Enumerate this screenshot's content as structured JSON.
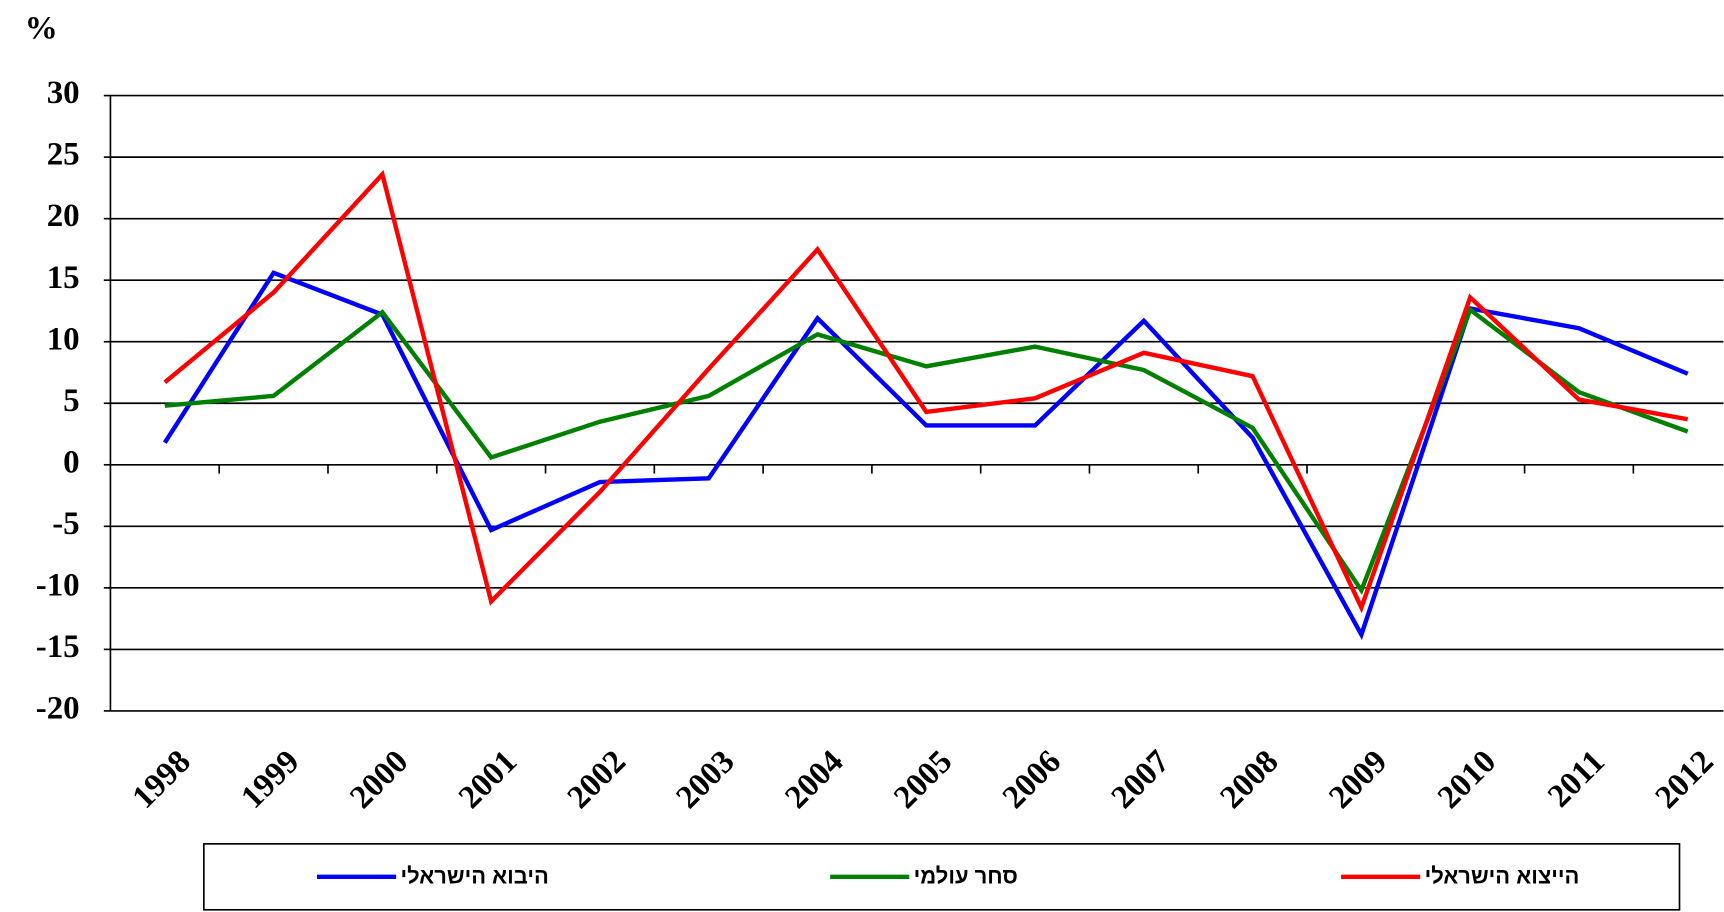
{
  "chart_data": {
    "type": "line",
    "y_label": "%",
    "categories": [
      "1998",
      "1999",
      "2000",
      "2001",
      "2002",
      "2003",
      "2004",
      "2005",
      "2006",
      "2007",
      "2008",
      "2009",
      "2010",
      "2011",
      "2012"
    ],
    "series": [
      {
        "name": "היבוא הישראלי",
        "color": "#0000ff",
        "values": [
          1.8,
          15.6,
          12.2,
          -5.3,
          -1.4,
          -1.1,
          11.9,
          3.2,
          3.2,
          11.7,
          2.2,
          -13.8,
          12.7,
          11.1,
          7.4
        ]
      },
      {
        "name": "סחר עולמי",
        "color": "#008000",
        "values": [
          4.8,
          5.6,
          12.4,
          0.6,
          3.5,
          5.6,
          10.6,
          8.0,
          9.6,
          7.7,
          3.0,
          -10.2,
          12.6,
          5.9,
          2.7
        ]
      },
      {
        "name": "הייצוא הישראלי",
        "color": "#ff0000",
        "values": [
          6.7,
          14.0,
          23.6,
          -11.1,
          -2.2,
          7.8,
          17.5,
          4.3,
          5.4,
          9.1,
          7.2,
          -11.6,
          13.6,
          5.3,
          3.7
        ]
      }
    ],
    "ylim": [
      -20,
      30
    ],
    "yticks": [
      -20,
      -15,
      -10,
      -5,
      0,
      5,
      10,
      15,
      20,
      25,
      30
    ],
    "grid": true
  }
}
